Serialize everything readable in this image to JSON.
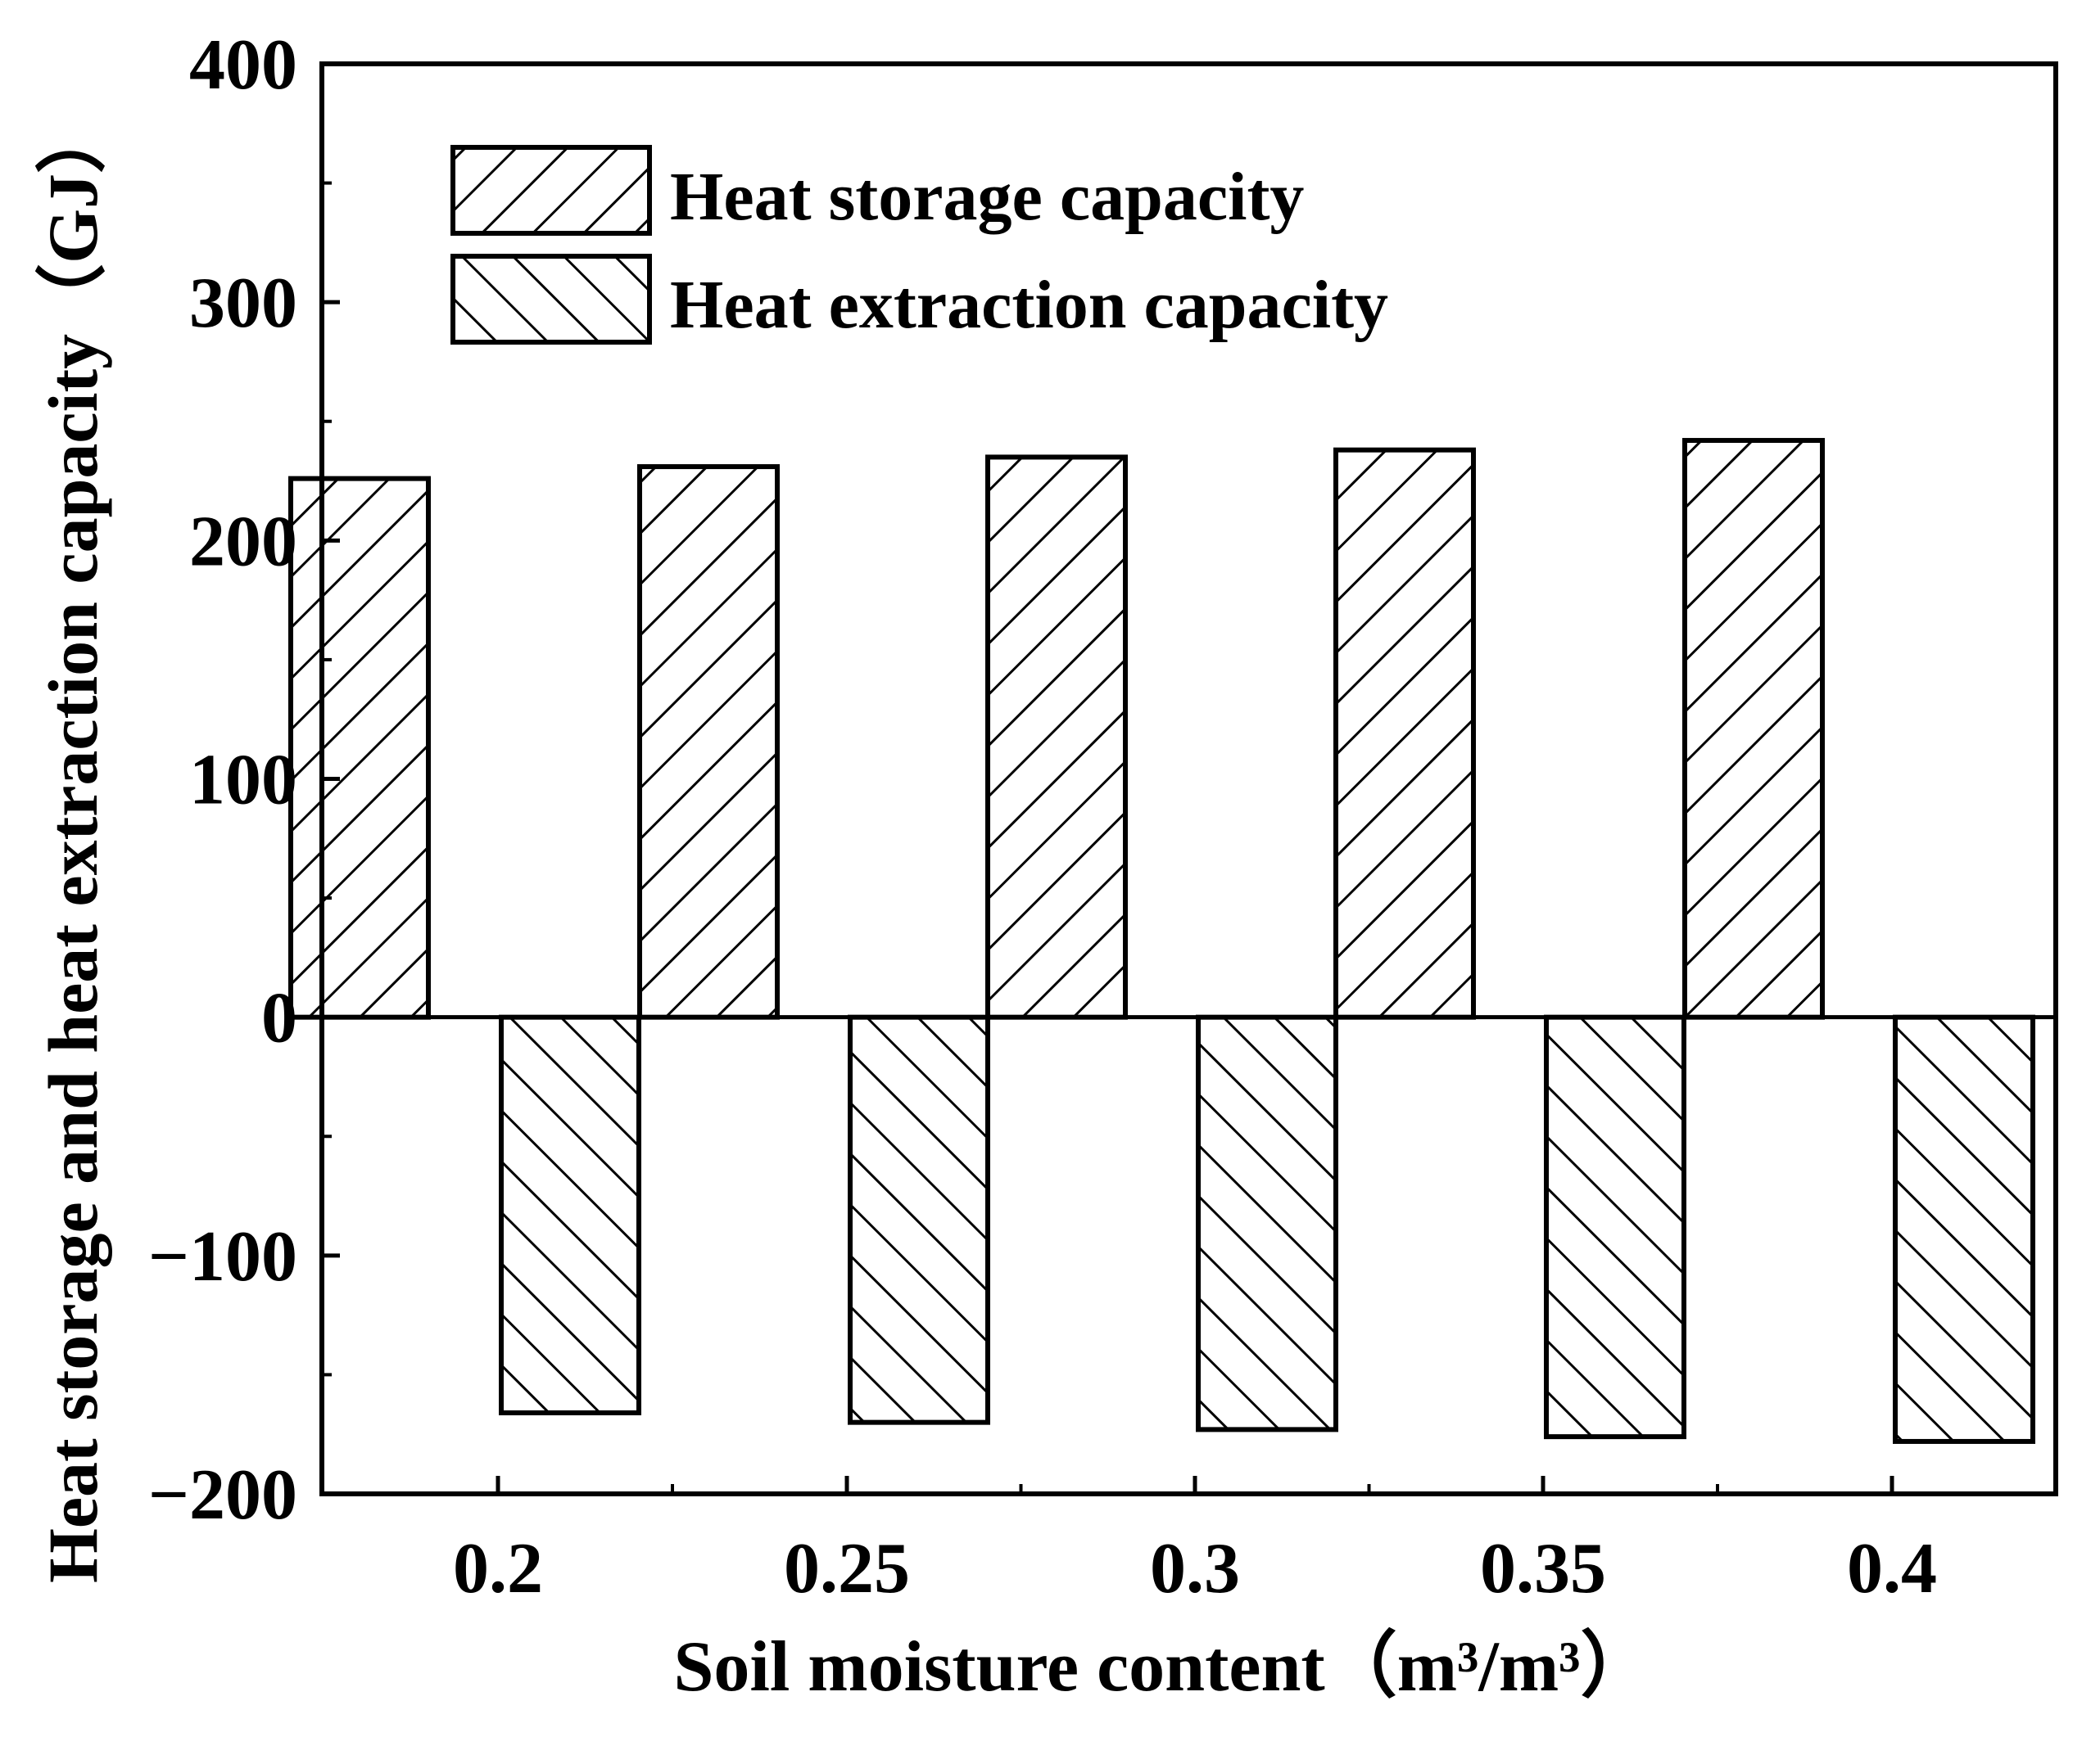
{
  "chart_data": {
    "type": "bar",
    "title": "",
    "xlabel": "Soil moisture content（m³/m³）",
    "ylabel": "Heat storage and heat extraction capacity（GJ）",
    "categories": [
      "0.2",
      "0.25",
      "0.3",
      "0.35",
      "0.4"
    ],
    "series": [
      {
        "name": "Heat storage capacity",
        "values": [
          226,
          231,
          235,
          238,
          242
        ],
        "hatch": "forward-diagonal"
      },
      {
        "name": "Heat extraction capacity",
        "values": [
          -166,
          -170,
          -173,
          -176,
          -178
        ],
        "hatch": "back-diagonal"
      }
    ],
    "ylim": [
      -200,
      400
    ],
    "yticks": [
      "400",
      "300",
      "200",
      "100",
      "0",
      "−100",
      "−200"
    ],
    "ytick_values": [
      400,
      300,
      200,
      100,
      0,
      -100,
      -200
    ],
    "legend_position": "top-left",
    "grid": false,
    "zero_line": true,
    "colors": {
      "bar_fill": "#ffffff",
      "stroke": "#000000",
      "background": "#ffffff"
    }
  }
}
